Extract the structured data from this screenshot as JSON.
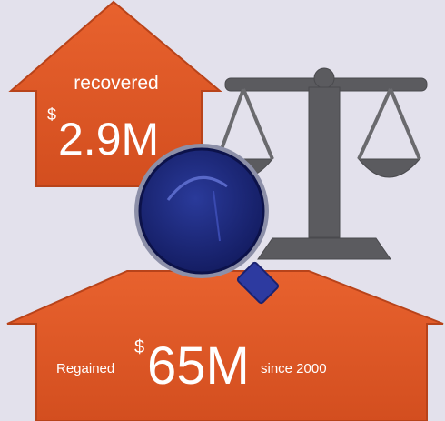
{
  "recovered": {
    "label": "recovered",
    "currency": "$",
    "amount": "2.9M"
  },
  "regained": {
    "label": "Regained",
    "currency": "$",
    "amount": "65M",
    "note": "since 2000"
  }
}
